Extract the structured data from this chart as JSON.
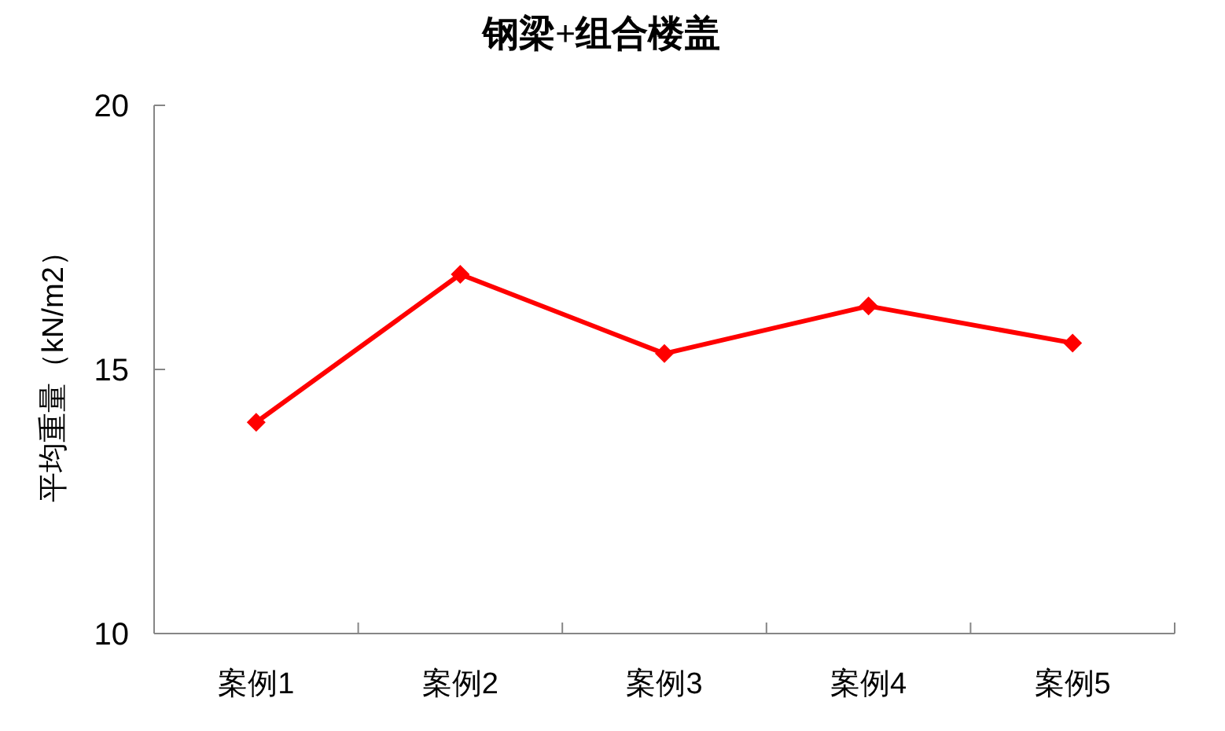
{
  "chart_data": {
    "type": "line",
    "title": "钢梁+组合楼盖",
    "ylabel": "平均重量（kN/m2）",
    "categories": [
      "案例1",
      "案例2",
      "案例3",
      "案例4",
      "案例5"
    ],
    "series": [
      {
        "color": "#ff0000",
        "values": [
          14.0,
          16.8,
          15.3,
          16.2,
          15.5
        ]
      }
    ],
    "ylim": [
      10,
      20
    ],
    "yticks": [
      10,
      15,
      20
    ],
    "marker": "diamond",
    "line_style": "solid"
  }
}
